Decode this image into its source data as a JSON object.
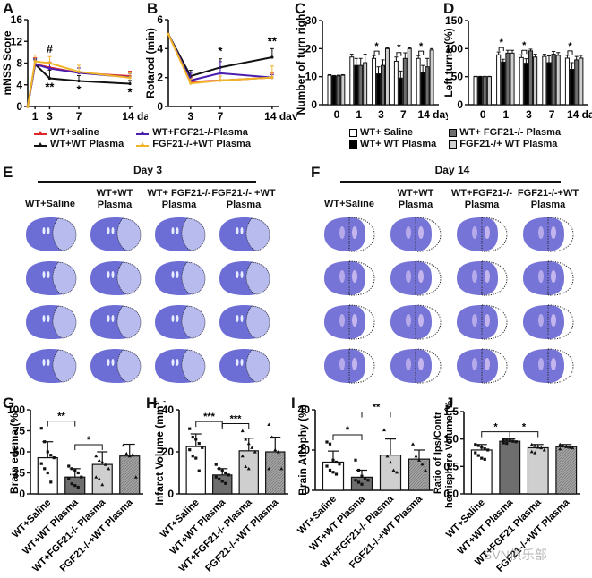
{
  "panel_labels": {
    "A": "A",
    "B": "B",
    "C": "C",
    "D": "D",
    "E": "E",
    "F": "F",
    "G": "G",
    "H": "H",
    "I": "I",
    "J": "J"
  },
  "line_legend": [
    {
      "label": "WT+saline",
      "color": "#e0242b"
    },
    {
      "label": "WT+WT Plasma",
      "color": "#111111"
    },
    {
      "label": "WT+FGF21-/-Plasma",
      "color": "#4b1fb0"
    },
    {
      "label": "FGF21-/-+WT Plasma",
      "color": "#f0b429"
    }
  ],
  "bar_legend": [
    {
      "label": "WT+ Saline",
      "fill": "#ffffff"
    },
    {
      "label": "WT+ WT Plasma",
      "fill": "#000000"
    },
    {
      "label": "WT+ FGF21-/- Plasma",
      "fill": "#6e6e6e"
    },
    {
      "label": "FGF21-/+ WT Plasma",
      "fill": "#cfcfcf"
    }
  ],
  "histology": {
    "E": {
      "title": "Day 3",
      "columns": [
        "WT+Saline",
        "WT+WT\nPlasma",
        "WT+ FGF21-/-\nPlasma",
        "FGF21-/- +WT\nPlasma"
      ],
      "rows": 4
    },
    "F": {
      "title": "Day 14",
      "columns": [
        "WT+Saline",
        "WT+WT\nPlasma",
        "WT+FGF21-/-\nPlasma",
        "FGF21-/-+WT\nPlasma"
      ],
      "rows": 4
    }
  },
  "watermark": "SVN俱乐部",
  "chart_data": [
    {
      "id": "A",
      "type": "line",
      "title": "",
      "xlabel": "day",
      "ylabel": "mNSS Score",
      "x": [
        0,
        1,
        3,
        7,
        14
      ],
      "xticks": [
        1,
        3,
        7,
        14
      ],
      "xtick_suffix": "day",
      "ylim": [
        0,
        16
      ],
      "yticks": [
        0,
        4,
        8,
        12,
        16
      ],
      "series": [
        {
          "name": "WT+saline",
          "color": "#e0242b",
          "values": [
            0,
            7.8,
            7.2,
            6.2,
            5.6
          ],
          "errors": [
            0,
            1.2,
            1.0,
            0.9,
            0.9
          ]
        },
        {
          "name": "WT+WT Plasma",
          "color": "#111111",
          "values": [
            0,
            7.8,
            5.2,
            4.7,
            4.2
          ],
          "errors": [
            0,
            0.8,
            1.5,
            1.0,
            0.6
          ]
        },
        {
          "name": "WT+FGF21-/-Plasma",
          "color": "#4b1fb0",
          "values": [
            0,
            7.8,
            7.0,
            6.2,
            5.4
          ],
          "errors": [
            0,
            1.0,
            0.9,
            0.9,
            0.7
          ]
        },
        {
          "name": "FGF21-/-+WT Plasma",
          "color": "#f0b429",
          "values": [
            0,
            8.3,
            8.0,
            6.4,
            5.3
          ],
          "errors": [
            0,
            1.2,
            1.2,
            1.2,
            0.9
          ]
        }
      ],
      "annotations": [
        {
          "x": 3,
          "text": "#",
          "pos": "above"
        },
        {
          "x": 3,
          "text": "**",
          "pos": "below"
        },
        {
          "x": 7,
          "text": "*",
          "pos": "below"
        },
        {
          "x": 14,
          "text": "*",
          "pos": "below"
        }
      ]
    },
    {
      "id": "B",
      "type": "line",
      "title": "",
      "xlabel": "day",
      "ylabel": "Rotarod (min)",
      "x": [
        0,
        3,
        7,
        14
      ],
      "xticks": [
        3,
        7,
        14
      ],
      "xtick_suffix": "day",
      "ylim": [
        0,
        6
      ],
      "yticks": [
        0,
        2,
        4,
        6
      ],
      "series": [
        {
          "name": "WT+saline",
          "color": "#e0242b",
          "values": [
            5.0,
            1.7,
            1.8,
            2.0
          ],
          "errors": [
            0,
            0.3,
            0.3,
            0.3
          ]
        },
        {
          "name": "WT+WT Plasma",
          "color": "#111111",
          "values": [
            5.0,
            2.1,
            2.7,
            3.4
          ],
          "errors": [
            0,
            0.4,
            0.6,
            0.6
          ]
        },
        {
          "name": "WT+FGF21-/-Plasma",
          "color": "#4b1fb0",
          "values": [
            5.0,
            1.8,
            2.3,
            2.0
          ],
          "errors": [
            0,
            0.5,
            0.8,
            0.2
          ]
        },
        {
          "name": "FGF21-/-+WT Plasma",
          "color": "#f0b429",
          "values": [
            5.0,
            1.6,
            1.8,
            2.0
          ],
          "errors": [
            0,
            0.3,
            0.3,
            0.8
          ]
        }
      ],
      "annotations": [
        {
          "x": 7,
          "text": "*"
        },
        {
          "x": 14,
          "text": "**"
        }
      ]
    },
    {
      "id": "C",
      "type": "bar",
      "title": "",
      "xlabel": "day",
      "ylabel": "Number of turn right",
      "categories": [
        "0",
        "1",
        "3",
        "7",
        "14"
      ],
      "category_suffix": "day",
      "ylim": [
        0,
        30
      ],
      "yticks": [
        0,
        10,
        20,
        30
      ],
      "series": [
        {
          "name": "WT+ Saline",
          "fill": "#ffffff",
          "values": [
            10.5,
            17,
            16.5,
            15.5,
            16.5
          ],
          "errors": [
            0.2,
            1.0,
            1.0,
            1.5,
            1.0
          ]
        },
        {
          "name": "WT+ WT Plasma",
          "fill": "#000000",
          "values": [
            10.2,
            14,
            11,
            9.5,
            11.5
          ],
          "errors": [
            0.2,
            2.5,
            2.5,
            2.5,
            2.5
          ]
        },
        {
          "name": "WT+ FGF21-/- Plasma",
          "fill": "#6e6e6e",
          "values": [
            10.3,
            14,
            14,
            16.5,
            13.5
          ],
          "errors": [
            0.2,
            2.5,
            2.0,
            2.0,
            3.0
          ]
        },
        {
          "name": "FGF21-/+ WT Plasma",
          "fill": "#cfcfcf",
          "values": [
            10.5,
            15,
            20,
            20,
            19.5
          ],
          "errors": [
            0.2,
            3.0,
            0.3,
            0.3,
            0.5
          ]
        }
      ],
      "annotations": [
        {
          "category": "3",
          "text": "*"
        },
        {
          "category": "7",
          "text": "*"
        },
        {
          "category": "14",
          "text": "*"
        }
      ]
    },
    {
      "id": "D",
      "type": "bar",
      "title": "",
      "xlabel": "day",
      "ylabel": "Left turns (%)",
      "categories": [
        "0",
        "1",
        "3",
        "7",
        "14"
      ],
      "category_suffix": "day",
      "ylim": [
        0,
        150
      ],
      "yticks": [
        0,
        50,
        100,
        150
      ],
      "series": [
        {
          "name": "WT+ Saline",
          "fill": "#ffffff",
          "values": [
            50,
            89,
            84,
            86,
            83
          ],
          "errors": [
            0.5,
            5,
            5,
            4,
            5
          ]
        },
        {
          "name": "WT+ WT Plasma",
          "fill": "#000000",
          "values": [
            50,
            76,
            74,
            75,
            63
          ],
          "errors": [
            0.5,
            5,
            8,
            12,
            12
          ]
        },
        {
          "name": "WT+ FGF21-/- Plasma",
          "fill": "#6e6e6e",
          "values": [
            50,
            92,
            96,
            90,
            80
          ],
          "errors": [
            0.5,
            5,
            3,
            5,
            6
          ]
        },
        {
          "name": "FGF21-/+ WT Plasma",
          "fill": "#cfcfcf",
          "values": [
            50,
            92,
            85,
            88,
            83
          ],
          "errors": [
            0.5,
            5,
            5,
            5,
            5
          ]
        }
      ],
      "annotations": [
        {
          "category": "1",
          "text": "*"
        },
        {
          "category": "3",
          "text": "*"
        },
        {
          "category": "14",
          "text": "*"
        }
      ]
    },
    {
      "id": "G",
      "type": "bar",
      "ylabel": "Brain edema (%)",
      "ylim": [
        0,
        100
      ],
      "yticks": [
        0,
        25,
        50,
        75,
        100
      ],
      "categories": [
        "WT+Saline",
        "WT+WT Plasma",
        "WT+FGF21-/- Plasma",
        "FGF21-/-+WT Plasma"
      ],
      "values": [
        43,
        20,
        35,
        45
      ],
      "errors": [
        19,
        10,
        15,
        14
      ],
      "fills": [
        "#ffffff",
        "#6e6e6e",
        "#cfcfcf",
        "#9a9a9a"
      ],
      "points": [
        [
          78,
          62,
          50,
          46,
          43,
          36,
          30,
          25,
          14
        ],
        [
          33,
          30,
          28,
          25,
          20,
          18,
          12,
          10,
          8
        ],
        [
          45,
          40,
          38,
          35,
          30,
          20,
          18,
          11
        ],
        [
          58,
          48,
          45,
          47,
          20
        ]
      ],
      "comparisons": [
        {
          "from": 0,
          "to": 1,
          "text": "**"
        },
        {
          "from": 1,
          "to": 2,
          "text": "*"
        }
      ]
    },
    {
      "id": "H",
      "type": "bar",
      "ylabel": "Infarct Volume (mm³)",
      "ylim": [
        0,
        40
      ],
      "yticks": [
        0,
        20,
        40
      ],
      "categories": [
        "WT+Saline",
        "WT+WT Plasma",
        "WT+FGF21-/- Plasma",
        "FGF21-/-+WT Plasma"
      ],
      "values": [
        22.5,
        9,
        20.5,
        20
      ],
      "errors": [
        6,
        3,
        6,
        7
      ],
      "fills": [
        "#ffffff",
        "#6e6e6e",
        "#cfcfcf",
        "#9a9a9a"
      ],
      "points": [
        [
          31,
          27,
          26,
          24,
          22,
          21,
          18,
          17,
          11
        ],
        [
          14,
          12,
          11,
          10,
          9,
          8,
          7,
          6,
          5
        ],
        [
          30,
          26,
          24,
          22,
          20,
          18,
          13,
          12
        ],
        [
          33,
          27,
          21,
          20,
          12,
          12
        ]
      ],
      "comparisons": [
        {
          "from": 0,
          "to": 1,
          "text": "***"
        },
        {
          "from": 1,
          "to": 2,
          "text": "***"
        }
      ]
    },
    {
      "id": "I",
      "type": "bar",
      "ylabel": "Brain Atrophy (%)",
      "ylim": [
        0,
        40
      ],
      "yticks": [
        0,
        20,
        40
      ],
      "categories": [
        "WT+Saline",
        "WT+WT Plasma",
        "WT+FGF21-/- Plasma",
        "FGF21-/-+WT Plasma"
      ],
      "values": [
        14,
        6.5,
        17.5,
        15.5
      ],
      "errors": [
        5.5,
        3.5,
        8,
        4.5
      ],
      "fills": [
        "#ffffff",
        "#6e6e6e",
        "#cfcfcf",
        "#9a9a9a"
      ],
      "points": [
        [
          24,
          23,
          15,
          14,
          13,
          12,
          10,
          9,
          8
        ],
        [
          15,
          10,
          7,
          6,
          5,
          5,
          4,
          3
        ],
        [
          30,
          17,
          14,
          10,
          9
        ],
        [
          23,
          17,
          15,
          13,
          10
        ]
      ],
      "comparisons": [
        {
          "from": 0,
          "to": 1,
          "text": "*"
        },
        {
          "from": 1,
          "to": 2,
          "text": "**"
        }
      ]
    },
    {
      "id": "J",
      "type": "bar",
      "ylabel": "Ratio of Ips/Contr hemisphere Volume (%)",
      "ylim": [
        0,
        1.5
      ],
      "yticks": [
        0.0,
        0.5,
        1.0,
        1.5
      ],
      "categories": [
        "WT+Saline",
        "WT+WT Plasma",
        "WT+FGF21 Plasma",
        "FGF21-/-+WT Plasma"
      ],
      "values": [
        0.8,
        0.96,
        0.84,
        0.86
      ],
      "errors": [
        0.1,
        0.04,
        0.06,
        0.04
      ],
      "fills": [
        "#ffffff",
        "#6e6e6e",
        "#cfcfcf",
        "#9a9a9a"
      ],
      "points": [
        [
          0.9,
          0.88,
          0.85,
          0.82,
          0.8,
          0.75,
          0.7,
          0.65,
          0.63
        ],
        [
          0.99,
          0.98,
          0.97,
          0.96,
          0.95,
          0.93,
          0.92
        ],
        [
          0.9,
          0.88,
          0.85,
          0.84,
          0.8,
          0.77,
          0.75
        ],
        [
          0.9,
          0.88,
          0.86,
          0.85,
          0.84,
          0.82
        ]
      ],
      "comparisons": [
        {
          "from": 0,
          "to": 1,
          "text": "*"
        },
        {
          "from": 1,
          "to": 2,
          "text": "*"
        }
      ]
    }
  ]
}
